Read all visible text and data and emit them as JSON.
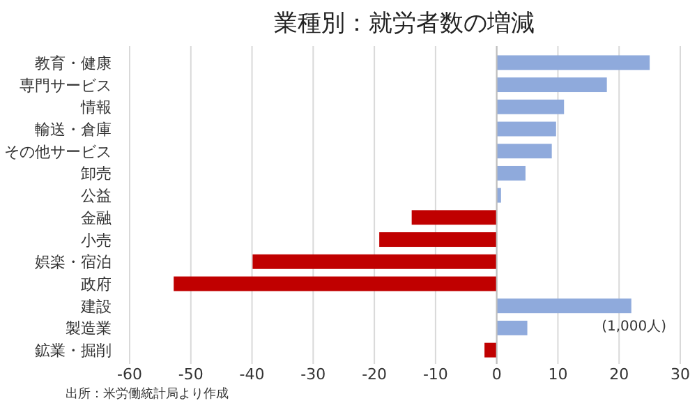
{
  "chart_data": {
    "type": "bar",
    "orientation": "horizontal",
    "title": "業種別：就労者数の増減",
    "categories": [
      "教育・健康",
      "専門サービス",
      "情報",
      "輸送・倉庫",
      "その他サービス",
      "卸売",
      "公益",
      "金融",
      "小売",
      "娯楽・宿泊",
      "政府",
      "建設",
      "製造業",
      "鉱業・掘削"
    ],
    "values": [
      25.0,
      18.0,
      11.0,
      9.7,
      9.0,
      4.7,
      0.7,
      -13.9,
      -19.2,
      -39.9,
      -52.8,
      22.0,
      5.0,
      -2.0
    ],
    "colors": [
      "#8faadc",
      "#8faadc",
      "#8faadc",
      "#8faadc",
      "#8faadc",
      "#8faadc",
      "#8faadc",
      "#c00000",
      "#c00000",
      "#c00000",
      "#c00000",
      "#8faadc",
      "#8faadc",
      "#c00000"
    ],
    "xlim": [
      -60,
      30
    ],
    "xticks": [
      -60,
      -50,
      -40,
      -30,
      -20,
      -10,
      0,
      10,
      20,
      30
    ],
    "grid": "x",
    "annotations": [
      "(1,000人)",
      "出所：米労働統計局より作成"
    ]
  }
}
